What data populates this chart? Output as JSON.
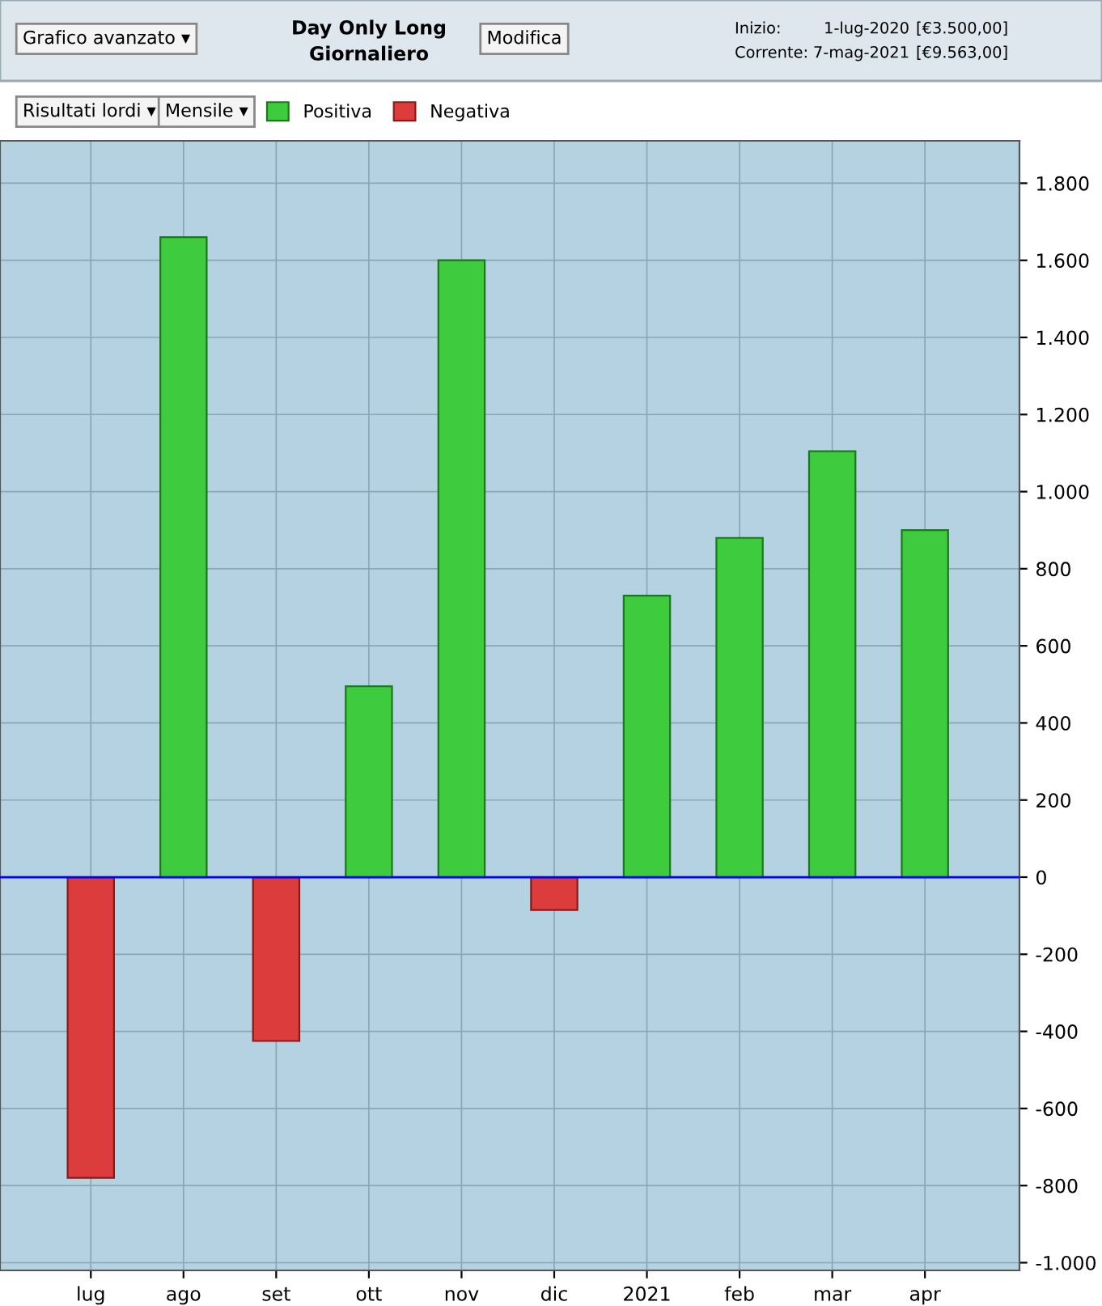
{
  "chart_data": {
    "type": "bar",
    "title": "Day Only Long",
    "subtitle": "Giornaliero",
    "categories": [
      "lug",
      "ago",
      "set",
      "ott",
      "nov",
      "dic",
      "2021",
      "feb",
      "mar",
      "apr"
    ],
    "series": [
      {
        "name": "Positiva",
        "color": "#3ecc3e",
        "values": [
          null,
          1660,
          null,
          495,
          1600,
          null,
          730,
          880,
          1105,
          900
        ]
      },
      {
        "name": "Negativa",
        "color": "#dd3c3c",
        "values": [
          -780,
          null,
          -425,
          null,
          null,
          -85,
          null,
          null,
          null,
          null
        ]
      }
    ],
    "ylim": [
      -1020,
      1910
    ],
    "yticks": [
      {
        "value": -1000,
        "label": "-1.000"
      },
      {
        "value": -800,
        "label": "-800"
      },
      {
        "value": -600,
        "label": "-600"
      },
      {
        "value": -400,
        "label": "-400"
      },
      {
        "value": -200,
        "label": "-200"
      },
      {
        "value": 0,
        "label": "0"
      },
      {
        "value": 200,
        "label": "200"
      },
      {
        "value": 400,
        "label": "400"
      },
      {
        "value": 600,
        "label": "600"
      },
      {
        "value": 800,
        "label": "800"
      },
      {
        "value": 1000,
        "label": "1.000"
      },
      {
        "value": 1200,
        "label": "1.200"
      },
      {
        "value": 1400,
        "label": "1.400"
      },
      {
        "value": 1600,
        "label": "1.600"
      },
      {
        "value": 1800,
        "label": "1.800"
      }
    ],
    "ref_lines": [
      {
        "axis": "y",
        "value": 0,
        "color": "#0000ff"
      }
    ],
    "grid": true,
    "legend": "top left",
    "annotations": [
      "Grafico avanzato ▾",
      "Modifica",
      "Inizio:",
      "1-lug-2020",
      "[€3.500,00]",
      "Corrente:",
      "7-mag-2021",
      "[€9.563,00]",
      "Risultati lordi ▾",
      "Mensile ▾"
    ]
  }
}
